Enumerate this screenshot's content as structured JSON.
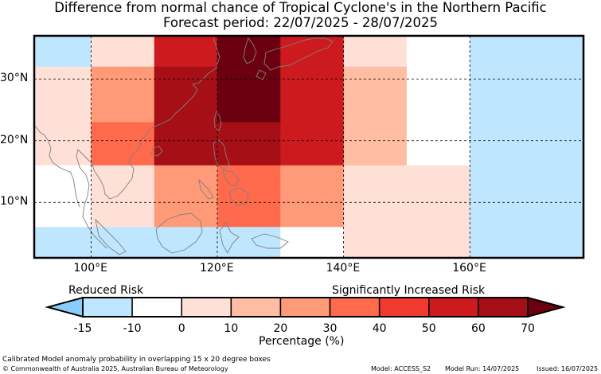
{
  "title_line1": "Difference from normal chance of Tropical Cyclone's in the Northern Pacific",
  "title_line2": "Forecast period: 22/07/2025 - 28/07/2025",
  "map": {
    "lon_range": [
      91,
      178
    ],
    "lat_range": [
      1,
      37
    ],
    "lon_ticks": [
      "100°E",
      "120°E",
      "140°E",
      "160°E"
    ],
    "lon_tick_values": [
      100,
      120,
      140,
      160
    ],
    "lat_ticks": [
      "30°N",
      "20°N",
      "10°N"
    ],
    "lat_tick_values": [
      30,
      20,
      10
    ],
    "grid": "dashed",
    "cells_pct": [
      {
        "lon": [
          91,
          100
        ],
        "lat": [
          32,
          37
        ],
        "pct": -15
      },
      {
        "lon": [
          100,
          110
        ],
        "lat": [
          32,
          37
        ],
        "pct": 0
      },
      {
        "lon": [
          110,
          120
        ],
        "lat": [
          32,
          37
        ],
        "pct": 50
      },
      {
        "lon": [
          120,
          130
        ],
        "lat": [
          32,
          37
        ],
        "pct": 70
      },
      {
        "lon": [
          130,
          140
        ],
        "lat": [
          32,
          37
        ],
        "pct": 50
      },
      {
        "lon": [
          140,
          150
        ],
        "lat": [
          32,
          37
        ],
        "pct": 0
      },
      {
        "lon": [
          150,
          160
        ],
        "lat": [
          32,
          37
        ],
        "pct": -10
      },
      {
        "lon": [
          160,
          178
        ],
        "lat": [
          32,
          37
        ],
        "pct": -15
      },
      {
        "lon": [
          91,
          100
        ],
        "lat": [
          23,
          32
        ],
        "pct": 0
      },
      {
        "lon": [
          100,
          110
        ],
        "lat": [
          23,
          32
        ],
        "pct": 20
      },
      {
        "lon": [
          110,
          120
        ],
        "lat": [
          23,
          32
        ],
        "pct": 60
      },
      {
        "lon": [
          120,
          130
        ],
        "lat": [
          23,
          32
        ],
        "pct": 70
      },
      {
        "lon": [
          130,
          140
        ],
        "lat": [
          23,
          32
        ],
        "pct": 50
      },
      {
        "lon": [
          140,
          150
        ],
        "lat": [
          23,
          32
        ],
        "pct": 10
      },
      {
        "lon": [
          150,
          160
        ],
        "lat": [
          23,
          32
        ],
        "pct": -10
      },
      {
        "lon": [
          160,
          178
        ],
        "lat": [
          23,
          32
        ],
        "pct": -15
      },
      {
        "lon": [
          91,
          100
        ],
        "lat": [
          16,
          23
        ],
        "pct": 0
      },
      {
        "lon": [
          100,
          110
        ],
        "lat": [
          16,
          23
        ],
        "pct": 30
      },
      {
        "lon": [
          110,
          120
        ],
        "lat": [
          16,
          23
        ],
        "pct": 60
      },
      {
        "lon": [
          120,
          130
        ],
        "lat": [
          16,
          23
        ],
        "pct": 65
      },
      {
        "lon": [
          130,
          140
        ],
        "lat": [
          16,
          23
        ],
        "pct": 50
      },
      {
        "lon": [
          140,
          150
        ],
        "lat": [
          16,
          23
        ],
        "pct": 10
      },
      {
        "lon": [
          150,
          160
        ],
        "lat": [
          16,
          23
        ],
        "pct": -10
      },
      {
        "lon": [
          160,
          178
        ],
        "lat": [
          16,
          23
        ],
        "pct": -15
      },
      {
        "lon": [
          91,
          100
        ],
        "lat": [
          6,
          16
        ],
        "pct": -10
      },
      {
        "lon": [
          100,
          110
        ],
        "lat": [
          6,
          16
        ],
        "pct": 0
      },
      {
        "lon": [
          110,
          120
        ],
        "lat": [
          6,
          16
        ],
        "pct": 20
      },
      {
        "lon": [
          120,
          130
        ],
        "lat": [
          6,
          16
        ],
        "pct": 30
      },
      {
        "lon": [
          130,
          140
        ],
        "lat": [
          6,
          16
        ],
        "pct": 20
      },
      {
        "lon": [
          140,
          150
        ],
        "lat": [
          6,
          16
        ],
        "pct": 0
      },
      {
        "lon": [
          150,
          160
        ],
        "lat": [
          6,
          16
        ],
        "pct": 0
      },
      {
        "lon": [
          160,
          178
        ],
        "lat": [
          6,
          16
        ],
        "pct": -15
      },
      {
        "lon": [
          91,
          130
        ],
        "lat": [
          1,
          6
        ],
        "pct": -15
      },
      {
        "lon": [
          130,
          140
        ],
        "lat": [
          1,
          6
        ],
        "pct": -10
      },
      {
        "lon": [
          140,
          160
        ],
        "lat": [
          1,
          6
        ],
        "pct": 0
      },
      {
        "lon": [
          160,
          178
        ],
        "lat": [
          1,
          6
        ],
        "pct": -15
      }
    ]
  },
  "colorbar": {
    "label_left": "Reduced Risk",
    "label_right": "Significantly Increased Risk",
    "ticks": [
      "-15",
      "-10",
      "0",
      "10",
      "20",
      "30",
      "40",
      "50",
      "60",
      "70"
    ],
    "colors": [
      "#87cefa",
      "#bfe6ff",
      "#ffffff",
      "#ffe0d6",
      "#ffbda3",
      "#ff9a78",
      "#ff6a4d",
      "#f03a2d",
      "#cc1a1f",
      "#a50f15",
      "#6b0010"
    ],
    "xlabel": "Percentage (%)"
  },
  "footer": {
    "line1": "Calibrated Model anomaly probability in overlapping 15 x 20 degree boxes",
    "line2": "© Commonwealth of Australia 2025, Australian Bureau of Meteorology",
    "model": "Model: ACCESS_S2",
    "model_run": "Model Run: 14/07/2025",
    "issued": "Issued: 16/07/2025"
  }
}
